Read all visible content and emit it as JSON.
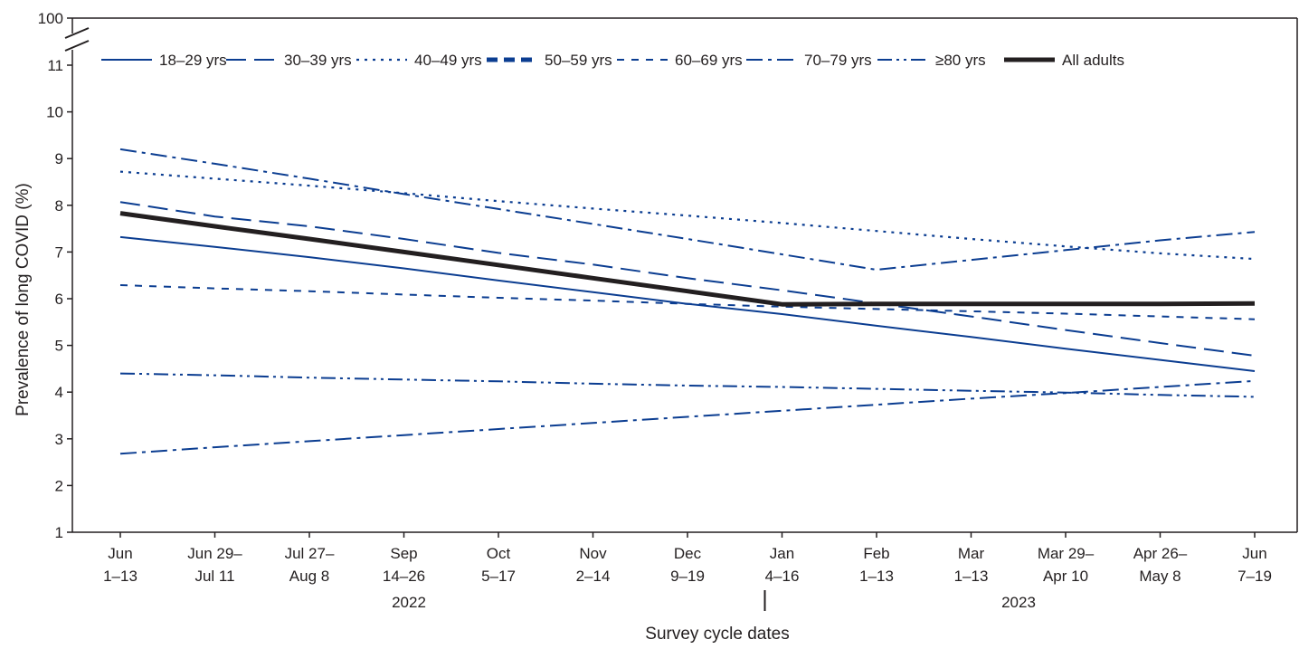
{
  "chart_data": {
    "type": "line",
    "title": "",
    "xlabel": "Survey cycle dates",
    "ylabel": "Prevalence of long COVID (%)",
    "ylim": [
      1,
      11
    ],
    "y_break_top_label": "100",
    "y_ticks": [
      "1",
      "2",
      "3",
      "4",
      "5",
      "6",
      "7",
      "8",
      "9",
      "10",
      "11"
    ],
    "categories": [
      [
        "Jun",
        "1–13"
      ],
      [
        "Jun 29–",
        "Jul 11"
      ],
      [
        "Jul 27–",
        "Aug 8"
      ],
      [
        "Sep",
        "14–26"
      ],
      [
        "Oct",
        "5–17"
      ],
      [
        "Nov",
        "2–14"
      ],
      [
        "Dec",
        "9–19"
      ],
      [
        "Jan",
        "4–16"
      ],
      [
        "Feb",
        "1–13"
      ],
      [
        "Mar",
        "1–13"
      ],
      [
        "Mar 29–",
        "Apr 10"
      ],
      [
        "Apr 26–",
        "May 8"
      ],
      [
        "Jun",
        "7–19"
      ]
    ],
    "years": [
      "2022",
      "2023"
    ],
    "grid": false,
    "legend_position": "top",
    "series": [
      {
        "name": "18–29 yrs",
        "style": "solid",
        "color": "#0b3d91",
        "values": [
          7.32,
          7.11,
          6.89,
          6.65,
          6.39,
          6.14,
          5.89,
          5.67,
          5.42,
          5.18,
          4.93,
          4.69,
          4.45
        ]
      },
      {
        "name": "30–39 yrs",
        "style": "long-dash",
        "color": "#0b3d91",
        "values": [
          8.07,
          7.76,
          7.55,
          7.28,
          6.98,
          6.73,
          6.44,
          6.18,
          5.9,
          5.62,
          5.33,
          5.05,
          4.78
        ]
      },
      {
        "name": "40–49 yrs",
        "style": "dotted",
        "color": "#0b3d91",
        "values": [
          8.72,
          8.57,
          8.42,
          8.26,
          8.09,
          7.93,
          7.78,
          7.62,
          7.45,
          7.28,
          7.12,
          6.97,
          6.85
        ]
      },
      {
        "name": "50–59 yrs",
        "style": "thick-dash",
        "color": "#0b3d91",
        "values": [
          null,
          null,
          null,
          null,
          null,
          null,
          null,
          null,
          null,
          null,
          null,
          null,
          null
        ]
      },
      {
        "name": "60–69 yrs",
        "style": "short-dash",
        "color": "#0b3d91",
        "values": [
          6.29,
          6.22,
          6.16,
          6.09,
          6.02,
          5.96,
          5.89,
          5.83,
          5.78,
          5.73,
          5.68,
          5.62,
          5.56
        ]
      },
      {
        "name": "70–79 yrs",
        "style": "dash-dot",
        "color": "#0b3d91",
        "values": [
          9.2,
          8.89,
          8.57,
          8.24,
          7.92,
          7.6,
          7.28,
          6.95,
          6.62,
          6.83,
          7.04,
          7.25,
          7.43
        ]
      },
      {
        "name": "≥80 yrs",
        "style": "dash-dot-dot",
        "color": "#0b3d91",
        "values": [
          4.4,
          4.36,
          4.31,
          4.27,
          4.23,
          4.18,
          4.14,
          4.11,
          4.07,
          4.03,
          3.99,
          3.94,
          3.9
        ]
      },
      {
        "name": "All adults",
        "style": "bold",
        "color": "#231f20",
        "values": [
          7.83,
          7.55,
          7.28,
          7.0,
          6.72,
          6.44,
          6.16,
          5.88,
          5.89,
          5.89,
          5.89,
          5.89,
          5.9
        ]
      }
    ],
    "extra_series": [
      {
        "name": "",
        "style": "dash-dot",
        "color": "#0b3d91",
        "values": [
          2.68,
          2.82,
          2.95,
          3.08,
          3.21,
          3.34,
          3.47,
          3.6,
          3.73,
          3.86,
          3.98,
          4.11,
          4.24
        ]
      }
    ]
  }
}
